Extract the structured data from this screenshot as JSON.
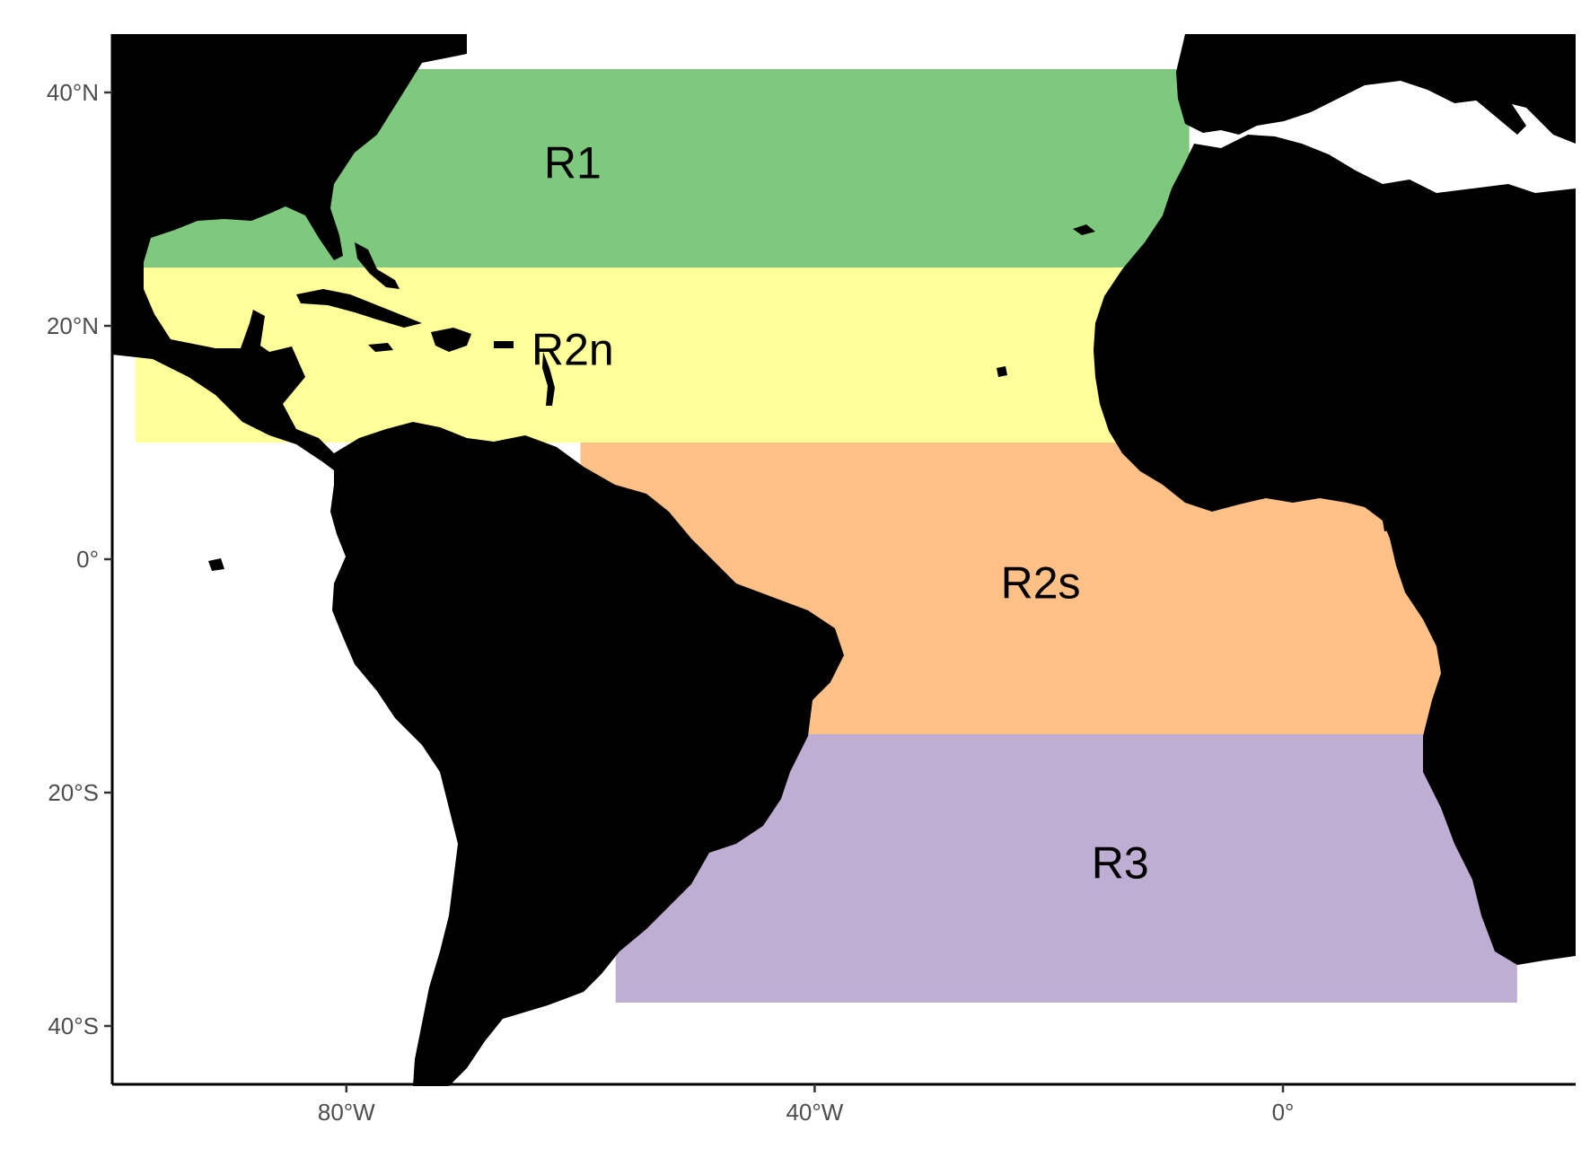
{
  "map": {
    "projection": "equirectangular",
    "extent": {
      "lon": [
        -100,
        25
      ],
      "lat": [
        -45,
        45
      ]
    },
    "land_color": "#000000",
    "ocean_color": "#ffffff",
    "x_axis": {
      "ticks": [
        {
          "lon": -80,
          "label": "80°W"
        },
        {
          "lon": -40,
          "label": "40°W"
        },
        {
          "lon": 0,
          "label": "0°"
        }
      ]
    },
    "y_axis": {
      "ticks": [
        {
          "lat": 40,
          "label": "40°N"
        },
        {
          "lat": 20,
          "label": "20°N"
        },
        {
          "lat": 0,
          "label": "0°"
        },
        {
          "lat": -20,
          "label": "20°S"
        },
        {
          "lat": -40,
          "label": "40°S"
        }
      ]
    },
    "regions": [
      {
        "name": "R1",
        "color": "#7fc97f",
        "lon": [
          -98,
          -8
        ],
        "lat": [
          25,
          42
        ]
      },
      {
        "name": "R2n",
        "color": "#ffff99",
        "lon": [
          -98,
          -8
        ],
        "lat": [
          10,
          25
        ]
      },
      {
        "name": "R2s",
        "color": "#fdc086",
        "lon": [
          -60,
          14
        ],
        "lat": [
          -15,
          10
        ]
      },
      {
        "name": "R3",
        "color": "#beaed4",
        "lon": [
          -57,
          20
        ],
        "lat": [
          -38,
          -15
        ]
      }
    ]
  }
}
